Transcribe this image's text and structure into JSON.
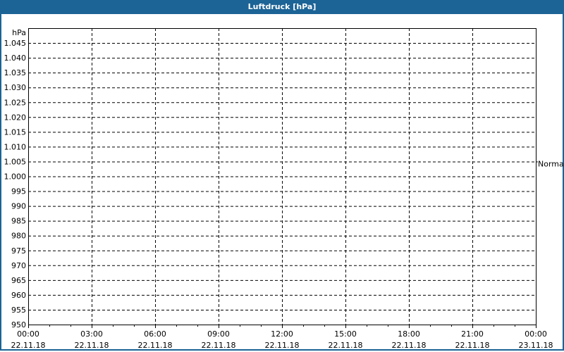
{
  "window": {
    "title": "Luftdruck [hPa]"
  },
  "colors": {
    "titlebar": "#1c6396",
    "grid": "#000000"
  },
  "chart_data": {
    "type": "line",
    "title": "Luftdruck [hPa]",
    "ylabel": "hPa",
    "ylim": [
      950,
      1050
    ],
    "yticks": [
      "950",
      "955",
      "960",
      "965",
      "970",
      "975",
      "980",
      "985",
      "990",
      "995",
      "1.000",
      "1.005",
      "1.010",
      "1.015",
      "1.020",
      "1.025",
      "1.030",
      "1.035",
      "1.040",
      "1.045"
    ],
    "xticks": [
      {
        "time": "00:00",
        "date": "22.11.18"
      },
      {
        "time": "03:00",
        "date": "22.11.18"
      },
      {
        "time": "06:00",
        "date": "22.11.18"
      },
      {
        "time": "09:00",
        "date": "22.11.18"
      },
      {
        "time": "12:00",
        "date": "22.11.18"
      },
      {
        "time": "15:00",
        "date": "22.11.18"
      },
      {
        "time": "18:00",
        "date": "22.11.18"
      },
      {
        "time": "21:00",
        "date": "22.11.18"
      },
      {
        "time": "00:00",
        "date": "23.11.18"
      }
    ],
    "xlim": [
      "22.11.18 00:00",
      "23.11.18 00:00"
    ],
    "grid": true,
    "series": [],
    "reference_line": {
      "label": "Normal",
      "value": 1005
    }
  }
}
